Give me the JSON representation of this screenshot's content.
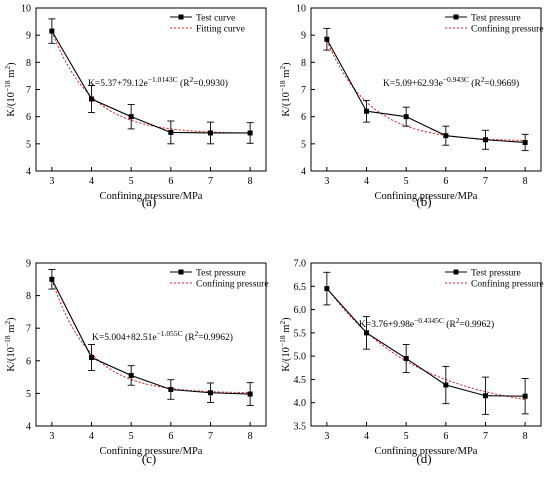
{
  "chart_data": [
    {
      "type": "line",
      "panel_label": "(a)",
      "xlabel": "Confining pressure/MPa",
      "ylabel_main": "K/(10",
      "ylabel_exp": "−18",
      "ylabel_unit": " m",
      "ylabel_unit_exp": "2",
      "ylabel_close": ")",
      "x": [
        3,
        4,
        5,
        6,
        7,
        8
      ],
      "xlim": [
        2.6,
        8.4
      ],
      "ylim": [
        4,
        10
      ],
      "yticks": [
        4,
        5,
        6,
        7,
        8,
        9,
        10
      ],
      "xticks": [
        3,
        4,
        5,
        6,
        7,
        8
      ],
      "series": [
        {
          "name": "Test curve",
          "style": "solid-square",
          "values": [
            9.15,
            6.65,
            6.0,
            5.42,
            5.4,
            5.4
          ],
          "errors": [
            0.45,
            0.5,
            0.45,
            0.42,
            0.4,
            0.38
          ]
        },
        {
          "name": "Fitting curve",
          "style": "dotted",
          "fit": {
            "a": 5.37,
            "b": 79.12,
            "c": 1.0143
          }
        }
      ],
      "equation": {
        "lhs": "K=5.37+79.12e",
        "exp": "−1.0143C",
        "mid": " (R",
        "r2exp": "2",
        "rhs": "=0.9930)"
      },
      "legend": "top-right"
    },
    {
      "type": "line",
      "panel_label": "(b)",
      "xlabel": "Confining pressure/MPa",
      "ylabel_main": "K/(10",
      "ylabel_exp": "−18",
      "ylabel_unit": " m",
      "ylabel_unit_exp": "2",
      "ylabel_close": ")",
      "x": [
        3,
        4,
        5,
        6,
        7,
        8
      ],
      "xlim": [
        2.6,
        8.4
      ],
      "ylim": [
        4,
        10
      ],
      "yticks": [
        4,
        5,
        6,
        7,
        8,
        9,
        10
      ],
      "xticks": [
        3,
        4,
        5,
        6,
        7,
        8
      ],
      "series": [
        {
          "name": "Test pressure",
          "style": "solid-square",
          "values": [
            8.85,
            6.2,
            6.0,
            5.3,
            5.15,
            5.05
          ],
          "errors": [
            0.4,
            0.4,
            0.35,
            0.35,
            0.35,
            0.3
          ]
        },
        {
          "name": "Confining pressure",
          "style": "dotted",
          "fit": {
            "a": 5.09,
            "b": 62.93,
            "c": 0.943
          }
        }
      ],
      "equation": {
        "lhs": "K=5.09+62.93e",
        "exp": "−0.943C",
        "mid": " (R",
        "r2exp": "2",
        "rhs": "=0.9669)"
      },
      "legend": "top-right"
    },
    {
      "type": "line",
      "panel_label": "(c)",
      "xlabel": "Confining pressure/MPa",
      "ylabel_main": "K/(10",
      "ylabel_exp": "−18",
      "ylabel_unit": " m",
      "ylabel_unit_exp": "2",
      "ylabel_close": ")",
      "x": [
        3,
        4,
        5,
        6,
        7,
        8
      ],
      "xlim": [
        2.6,
        8.4
      ],
      "ylim": [
        4,
        9
      ],
      "yticks": [
        4,
        5,
        6,
        7,
        8,
        9
      ],
      "xticks": [
        3,
        4,
        5,
        6,
        7,
        8
      ],
      "series": [
        {
          "name": "Test pressure",
          "style": "solid-square",
          "values": [
            8.5,
            6.1,
            5.55,
            5.12,
            5.02,
            4.98
          ],
          "errors": [
            0.3,
            0.4,
            0.3,
            0.3,
            0.3,
            0.35
          ]
        },
        {
          "name": "Confining pressure",
          "style": "dotted",
          "fit": {
            "a": 5.004,
            "b": 82.51,
            "c": 1.055
          }
        }
      ],
      "equation": {
        "lhs": "K=5.004+82.51e",
        "exp": "−1.055C",
        "mid": " (R",
        "r2exp": "2",
        "rhs": "=0.9962)"
      },
      "legend": "top-right"
    },
    {
      "type": "line",
      "panel_label": "(d)",
      "xlabel": "Confining pressure/MPa",
      "ylabel_main": "K/(10",
      "ylabel_exp": "−18",
      "ylabel_unit": " m",
      "ylabel_unit_exp": "2",
      "ylabel_close": ")",
      "x": [
        3,
        4,
        5,
        6,
        7,
        8
      ],
      "xlim": [
        2.6,
        8.4
      ],
      "ylim": [
        3.5,
        7.0
      ],
      "yticks": [
        3.5,
        4.0,
        4.5,
        5.0,
        5.5,
        6.0,
        6.5,
        7.0
      ],
      "xticks": [
        3,
        4,
        5,
        6,
        7,
        8
      ],
      "ytick_decimals": 1,
      "series": [
        {
          "name": "Test pressure",
          "style": "solid-square",
          "values": [
            6.45,
            5.5,
            4.95,
            4.38,
            4.15,
            4.14
          ],
          "errors": [
            0.35,
            0.35,
            0.3,
            0.4,
            0.4,
            0.38
          ]
        },
        {
          "name": "Confining pressure",
          "style": "dotted",
          "fit": {
            "a": 3.76,
            "b": 9.98,
            "c": 0.4345
          }
        }
      ],
      "equation": {
        "lhs": "K=3.76+9.98e",
        "exp": "−0.4345C",
        "mid": " (R",
        "r2exp": "2",
        "rhs": "=0.9962)"
      },
      "legend": "top-right"
    }
  ],
  "colors": {
    "test": "#000000",
    "fit": "#d62728"
  }
}
